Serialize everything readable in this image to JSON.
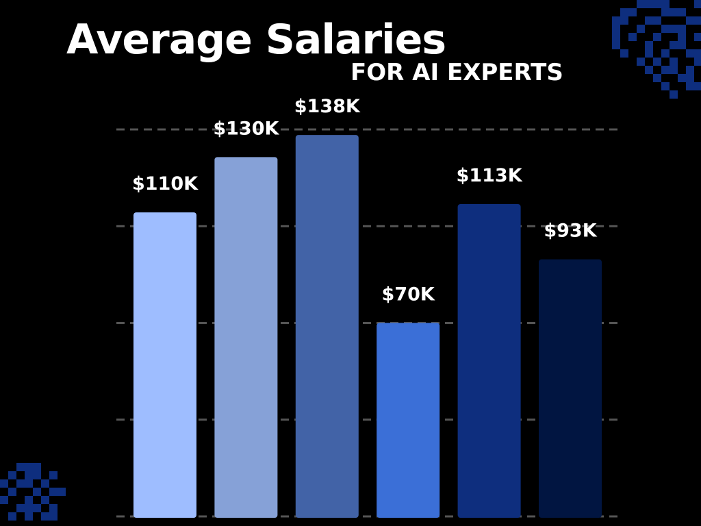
{
  "colors": {
    "background": "#000000",
    "text": "#ffffff",
    "grid": "#555555",
    "decoration": "#0e2e7e"
  },
  "chart_data": {
    "type": "bar",
    "title": "Average Salaries",
    "subtitle": "FOR AI EXPERTS",
    "xlabel": "",
    "ylabel": "",
    "categories": [
      "",
      "",
      "",
      "",
      "",
      ""
    ],
    "values": [
      110,
      130,
      138,
      70,
      113,
      93
    ],
    "data_labels": [
      "$110K",
      "$130K",
      "$138K",
      "$70K",
      "$113K",
      "$93K"
    ],
    "bar_colors": [
      "#9ebdff",
      "#86a1d7",
      "#4263a7",
      "#3b6fd7",
      "#0e2e7e",
      "#011541"
    ],
    "ylim": [
      0,
      140
    ],
    "gridlines": [
      0,
      35,
      70,
      105,
      140
    ],
    "grid": true,
    "grid_style": "dashed",
    "legend": "none"
  }
}
